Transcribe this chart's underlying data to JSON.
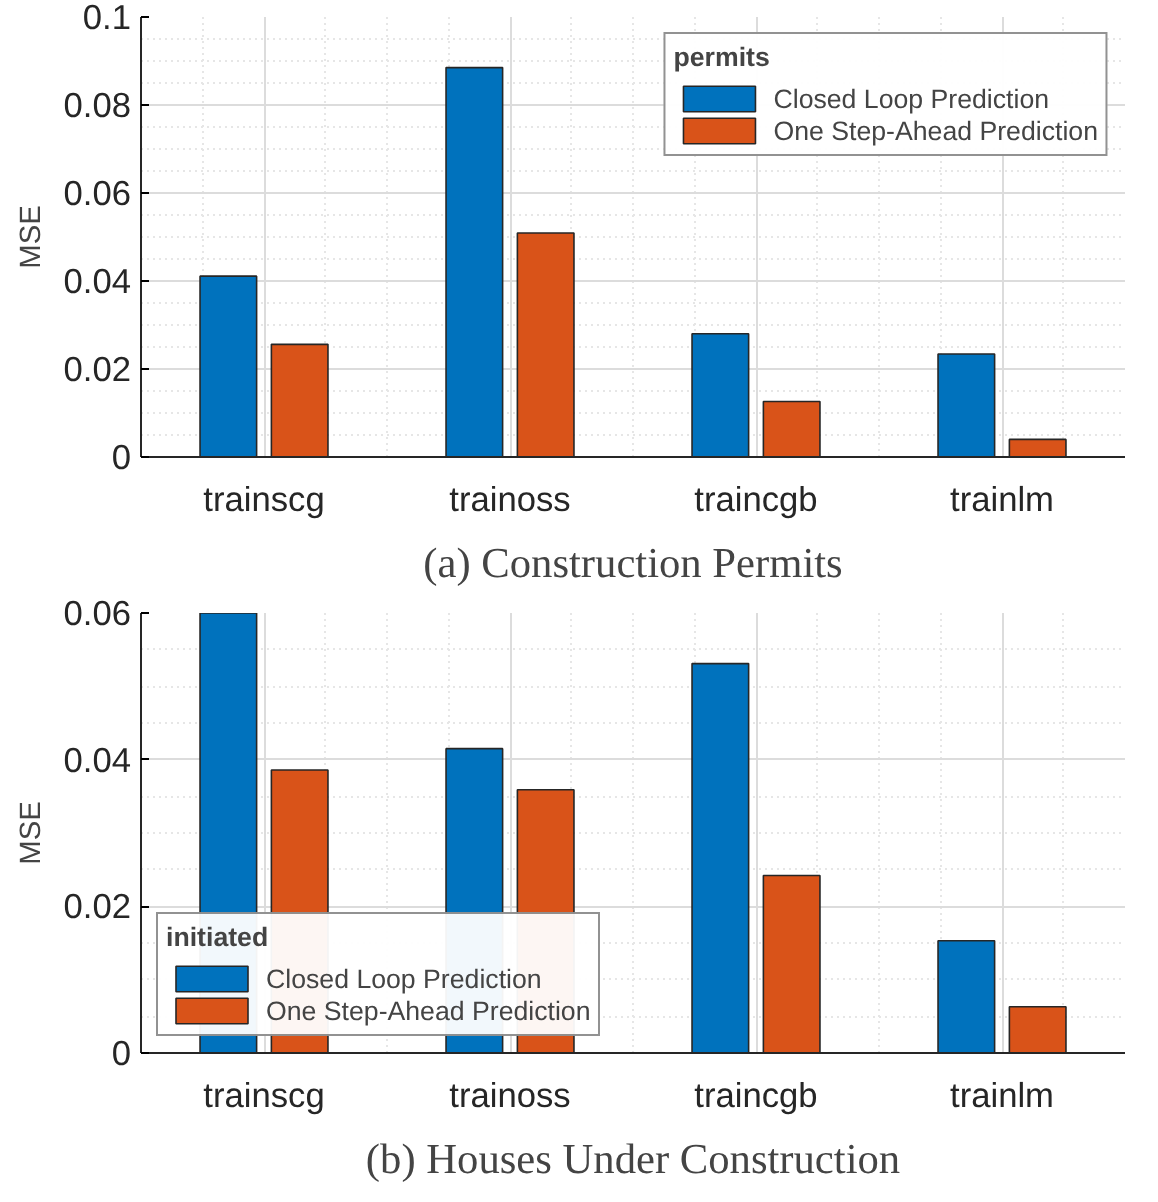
{
  "chart_data": [
    {
      "type": "bar",
      "title": "(a) Construction Permits",
      "ylabel": "MSE",
      "categories": [
        "trainscg",
        "trainoss",
        "traincgb",
        "trainlm"
      ],
      "series": [
        {
          "name": "Closed Loop Prediction",
          "color": "#0072bd",
          "values": [
            0.0411,
            0.0885,
            0.028,
            0.0234
          ]
        },
        {
          "name": "One Step-Ahead Prediction",
          "color": "#d95319",
          "values": [
            0.0256,
            0.0509,
            0.0126,
            0.004
          ]
        }
      ],
      "ylim": [
        0,
        0.1
      ],
      "yticks": [
        0,
        0.02,
        0.04,
        0.06,
        0.08,
        0.1
      ],
      "grid": true,
      "legend": "top right",
      "legend_title": "permits"
    },
    {
      "type": "bar",
      "title": "(b) Houses Under Construction",
      "ylabel": "MSE",
      "categories": [
        "trainscg",
        "trainoss",
        "traincgb",
        "trainlm"
      ],
      "series": [
        {
          "name": "Closed Loop Prediction",
          "color": "#0072bd",
          "values": [
            0.06,
            0.0415,
            0.0531,
            0.0153
          ]
        },
        {
          "name": "One Step-Ahead Prediction",
          "color": "#d95319",
          "values": [
            0.0386,
            0.0359,
            0.0242,
            0.0063
          ]
        }
      ],
      "ylim": [
        0,
        0.06
      ],
      "yticks": [
        0,
        0.02,
        0.04,
        0.06
      ],
      "grid": true,
      "legend": "bottom left",
      "legend_title": "initiated"
    }
  ]
}
